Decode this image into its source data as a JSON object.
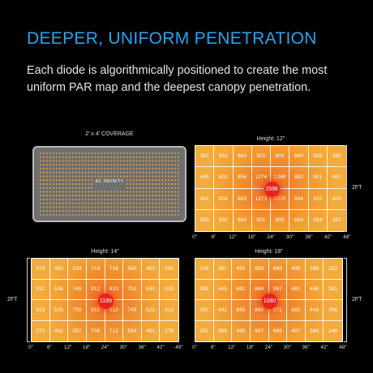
{
  "headline": "DEEPER, UNIFORM PENETRATION",
  "subtitle": "Each diode is algorithmically positioned to create the most uniform PAR map and the deepest canopy penetration.",
  "coverage": {
    "label": "2' x 4' COVERAGE",
    "brand": "AC INFINITY"
  },
  "x_ticks": [
    "0\"",
    "6\"",
    "12\"",
    "18\"",
    "24\"",
    "30\"",
    "36\"",
    "42\"",
    "48\""
  ],
  "side_label": "2FT",
  "colors": {
    "accent": "#2aa3ee",
    "cell": "#f2a033",
    "hot": "#e8221d",
    "led": "#f0a838"
  },
  "maps": [
    {
      "id": "12",
      "title": "Height: 12\"",
      "peak": "1598",
      "rows": [
        [
          "352",
          "552",
          "663",
          "802",
          "809",
          "660",
          "558",
          "360"
        ],
        [
          "405",
          "602",
          "856",
          "1274",
          "1269",
          "852",
          "601",
          "407"
        ],
        [
          "402",
          "604",
          "855",
          "1273",
          "1270",
          "854",
          "602",
          "403"
        ],
        [
          "359",
          "550",
          "665",
          "801",
          "805",
          "663",
          "554",
          "357"
        ]
      ]
    },
    {
      "id": "14",
      "title": "Height: 14\"",
      "peak": "1189",
      "rows": [
        [
          "275",
          "450",
          "559",
          "714",
          "716",
          "560",
          "452",
          "280"
        ],
        [
          "312",
          "526",
          "749",
          "912",
          "910",
          "752",
          "530",
          "310"
        ],
        [
          "313",
          "525",
          "750",
          "915",
          "912",
          "749",
          "523",
          "312"
        ],
        [
          "272",
          "452",
          "557",
          "709",
          "712",
          "554",
          "451",
          "279"
        ]
      ]
    },
    {
      "id": "18",
      "title": "Height: 18\"",
      "peak": "1080",
      "rows": [
        [
          "249",
          "387",
          "493",
          "693",
          "689",
          "495",
          "388",
          "252"
        ],
        [
          "398",
          "445",
          "682",
          "864",
          "867",
          "682",
          "446",
          "391"
        ],
        [
          "397",
          "442",
          "685",
          "866",
          "871",
          "682",
          "443",
          "396"
        ],
        [
          "251",
          "389",
          "495",
          "697",
          "688",
          "497",
          "386",
          "248"
        ]
      ]
    }
  ]
}
